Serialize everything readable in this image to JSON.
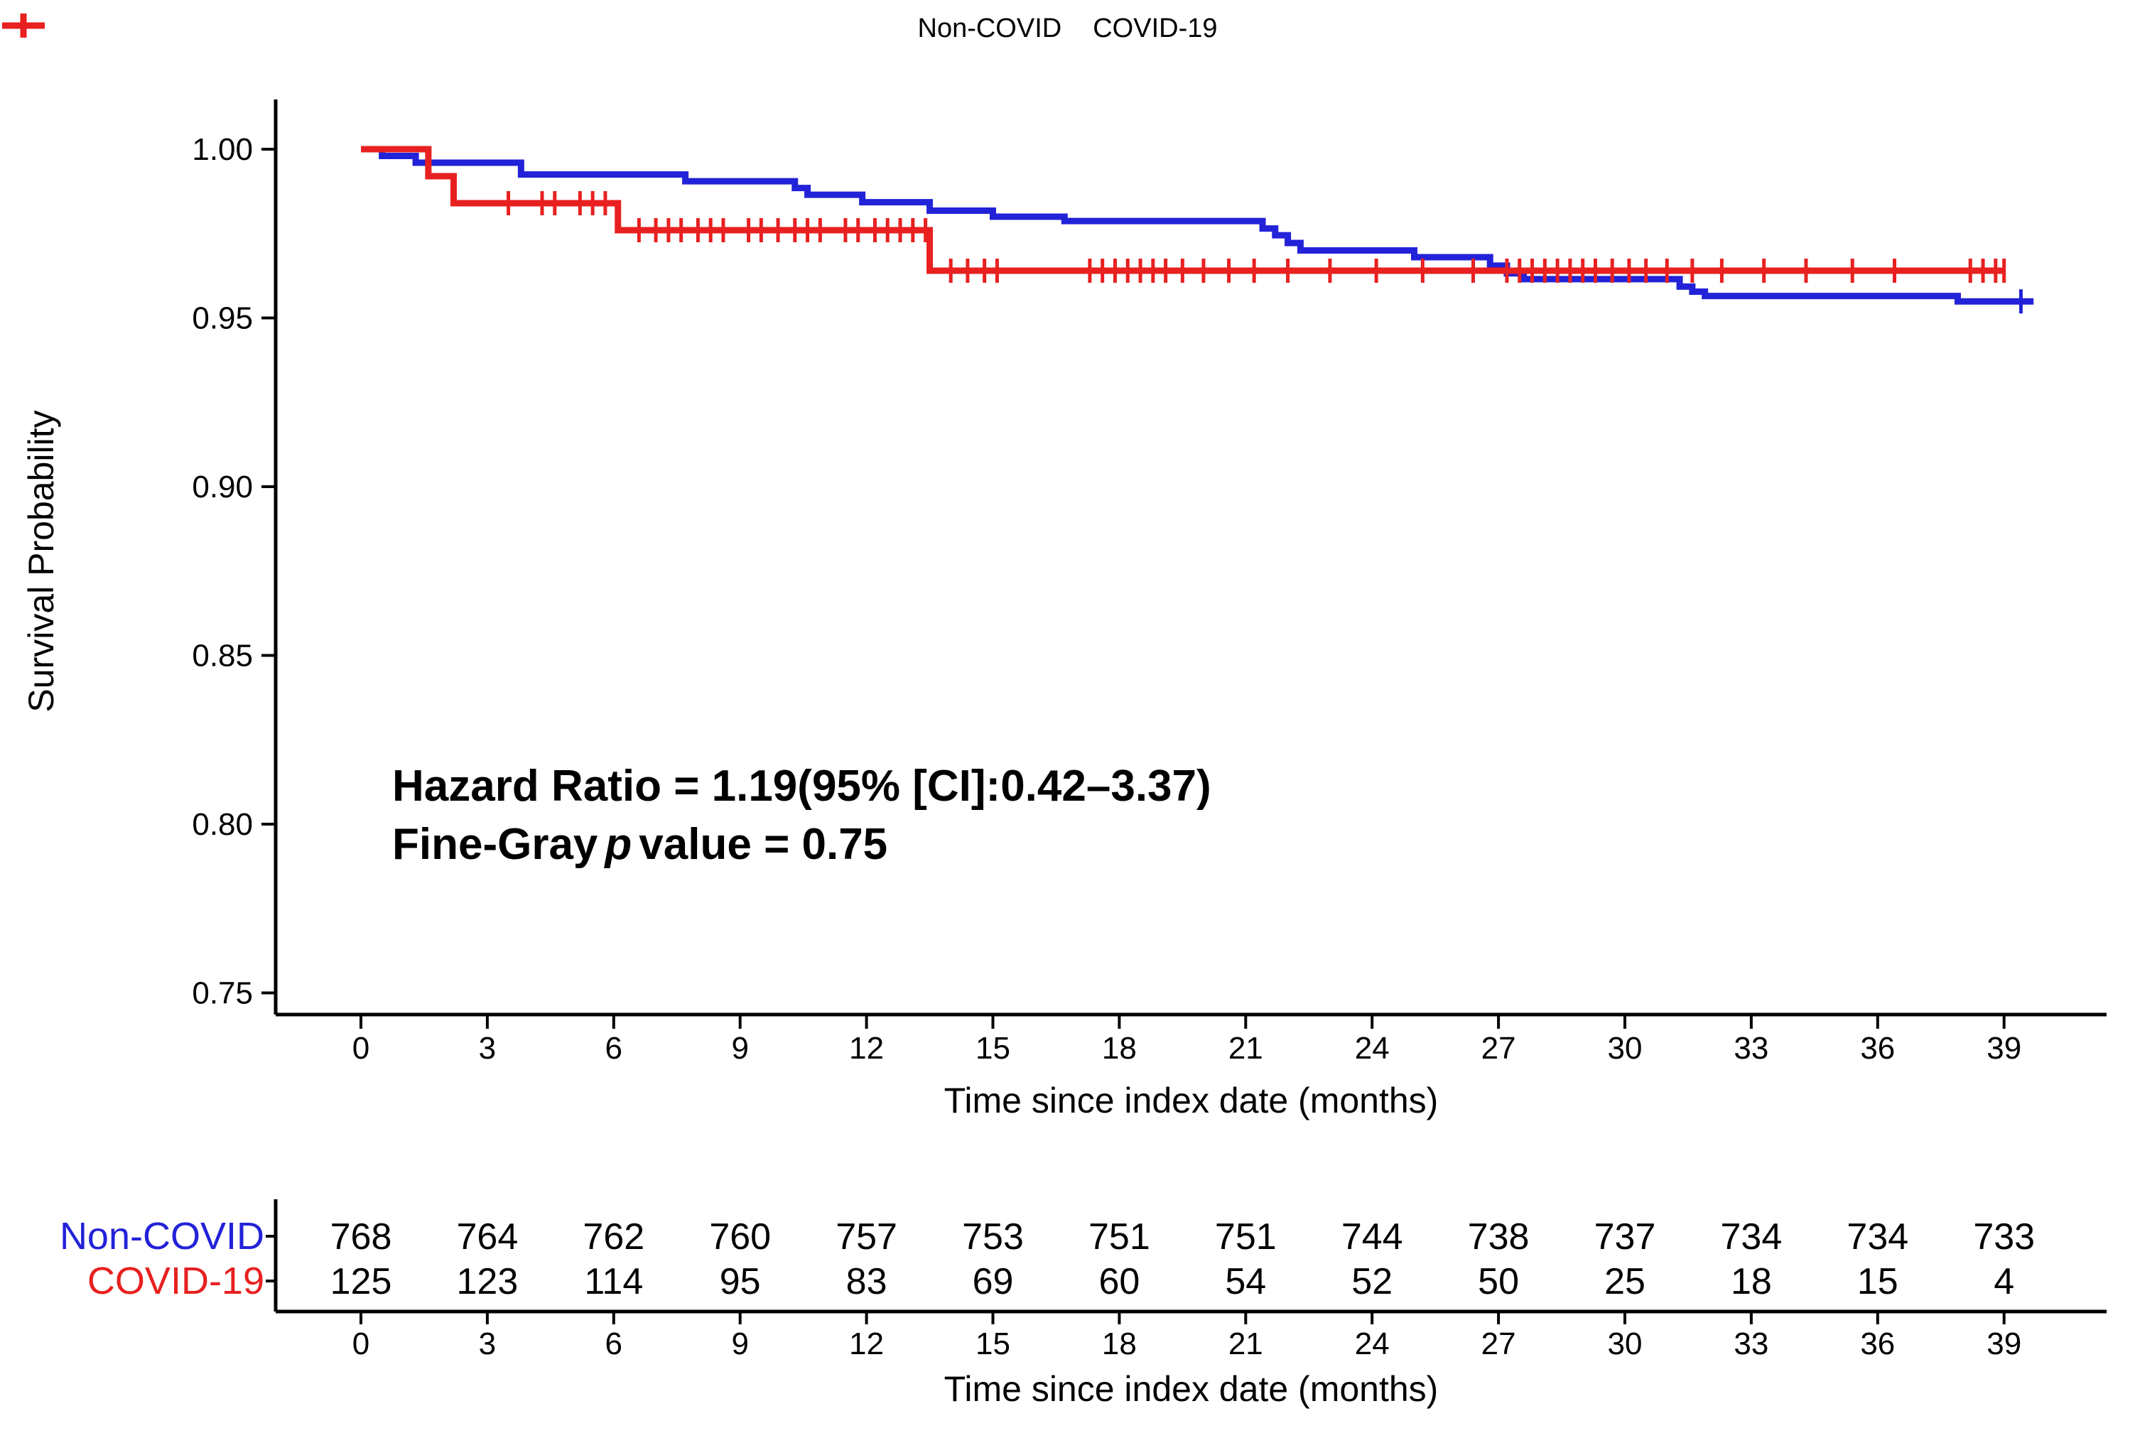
{
  "legend": {
    "items": [
      {
        "label": "Non-COVID",
        "color": "#2222d8"
      },
      {
        "label": "COVID-19",
        "color": "#e82020"
      }
    ]
  },
  "axes": {
    "y_label": "Survival Probability",
    "x_label": "Time since index date (months)"
  },
  "annotation": {
    "line1": "Hazard Ratio = 1.19(95% [CI]:0.42–3.37)",
    "line2_pre": "Fine-Gray",
    "line2_italic": "p",
    "line2_post": "value = 0.75"
  },
  "chart_data": {
    "type": "line",
    "subtype": "kaplan-meier-step-curve",
    "title": "",
    "xlabel": "Time since index date (months)",
    "ylabel": "Survival Probability",
    "xlim": [
      0,
      40.5
    ],
    "ylim": [
      0.745,
      1.005
    ],
    "x_ticks": [
      0,
      3,
      6,
      9,
      12,
      15,
      18,
      21,
      24,
      27,
      30,
      33,
      36,
      39
    ],
    "y_ticks": [
      "1.00",
      "0.95",
      "0.90",
      "0.85",
      "0.80",
      "0.75"
    ],
    "grid": false,
    "legend_position": "top-center",
    "series": [
      {
        "name": "Non-COVID",
        "color": "#2222d8",
        "steps": [
          [
            0,
            1.0
          ],
          [
            0.5,
            0.998
          ],
          [
            1.3,
            0.996
          ],
          [
            3.8,
            0.9925
          ],
          [
            7.7,
            0.9905
          ],
          [
            10.3,
            0.9885
          ],
          [
            10.6,
            0.9865
          ],
          [
            11.9,
            0.9843
          ],
          [
            13.5,
            0.9818
          ],
          [
            15.0,
            0.98
          ],
          [
            16.7,
            0.9787
          ],
          [
            21.4,
            0.9765
          ],
          [
            21.7,
            0.9745
          ],
          [
            22.0,
            0.9722
          ],
          [
            22.3,
            0.97
          ],
          [
            25.0,
            0.968
          ],
          [
            26.8,
            0.9655
          ],
          [
            27.2,
            0.9632
          ],
          [
            27.6,
            0.9615
          ],
          [
            31.3,
            0.9593
          ],
          [
            31.6,
            0.9578
          ],
          [
            31.9,
            0.9565
          ],
          [
            37.9,
            0.9549
          ]
        ],
        "end_time": 39.7,
        "censor_times": [
          39.4
        ]
      },
      {
        "name": "COVID-19",
        "color": "#e82020",
        "steps": [
          [
            0,
            1.0
          ],
          [
            1.6,
            0.992
          ],
          [
            2.2,
            0.984
          ],
          [
            6.1,
            0.976
          ],
          [
            13.5,
            0.964
          ]
        ],
        "end_time": 39.0,
        "censor_times": [
          3.5,
          4.3,
          4.6,
          5.2,
          5.5,
          5.8,
          6.6,
          7.0,
          7.3,
          7.6,
          8.0,
          8.3,
          8.6,
          9.2,
          9.5,
          9.9,
          10.3,
          10.6,
          10.9,
          11.5,
          11.8,
          12.2,
          12.5,
          12.8,
          13.1,
          13.4,
          14.0,
          14.4,
          14.8,
          15.1,
          17.3,
          17.6,
          17.9,
          18.2,
          18.5,
          18.8,
          19.1,
          19.5,
          20.0,
          20.6,
          21.2,
          22.0,
          23.0,
          24.1,
          25.2,
          26.4,
          27.2,
          27.5,
          27.8,
          28.1,
          28.4,
          28.7,
          29.0,
          29.3,
          29.7,
          30.1,
          30.5,
          31.0,
          31.6,
          32.3,
          33.3,
          34.3,
          35.4,
          36.4,
          38.2,
          38.5,
          38.8,
          39.0
        ]
      }
    ],
    "annotations": [
      "Hazard Ratio = 1.19(95% [CI]:0.42–3.37)",
      "Fine-Gray p value = 0.75"
    ]
  },
  "risk_table": {
    "x_label": "Time since index date (months)",
    "x_ticks": [
      0,
      3,
      6,
      9,
      12,
      15,
      18,
      21,
      24,
      27,
      30,
      33,
      36,
      39
    ],
    "rows": [
      {
        "label": "Non-COVID",
        "color": "#2222d8",
        "counts": [
          768,
          764,
          762,
          760,
          757,
          753,
          751,
          751,
          744,
          738,
          737,
          734,
          734,
          733
        ]
      },
      {
        "label": "COVID-19",
        "color": "#e82020",
        "counts": [
          125,
          123,
          114,
          95,
          83,
          69,
          60,
          54,
          52,
          50,
          25,
          18,
          15,
          4
        ]
      }
    ]
  }
}
